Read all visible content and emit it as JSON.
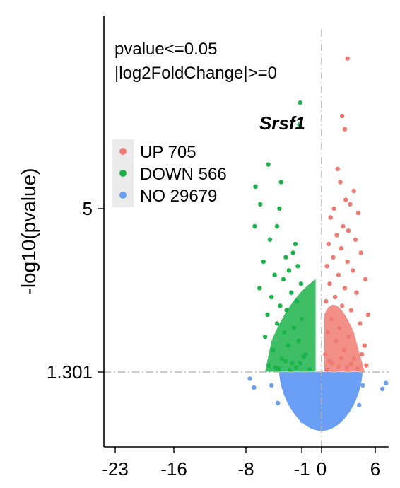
{
  "chart_data": {
    "type": "scatter",
    "title": "",
    "xlabel": "",
    "ylabel": "-log10(pvalue)",
    "x_ticks": [
      {
        "value": -23,
        "label": "-23"
      },
      {
        "value": -16,
        "label": "-16"
      },
      {
        "value": -8,
        "label": "-8"
      },
      {
        "value": -1,
        "label": "-1"
      },
      {
        "value": 0,
        "label": "0"
      },
      {
        "value": 6,
        "label": "6"
      }
    ],
    "y_ticks": [
      {
        "value": 1.301,
        "label": "1.301"
      },
      {
        "value": 5,
        "label": "5"
      }
    ],
    "xlim": [
      -26.5,
      7.5
    ],
    "ylim": [
      -0.3,
      9.0
    ],
    "annotations": [
      "pvalue<=0.05",
      "|log2FoldChange|>=0"
    ],
    "threshold_line_y": 1.301,
    "threshold_line_x": 0,
    "highlight_label": {
      "text": "Srsf1",
      "x": -1.2,
      "y": 6.9
    },
    "legend": {
      "placement": "top-left",
      "entries": [
        {
          "label": "UP 705",
          "color": "#F07B72"
        },
        {
          "label": "DOWN 566",
          "color": "#1CB34A"
        },
        {
          "label": "NO 29679",
          "color": "#6A9EF5"
        }
      ]
    },
    "series": [
      {
        "name": "UP 705",
        "color": "#F07B72",
        "points": [
          [
            2.9,
            8.4
          ],
          [
            2.6,
            6.8
          ],
          [
            2.3,
            7.1
          ],
          [
            1.8,
            5.9
          ],
          [
            2.1,
            5.6
          ],
          [
            3.6,
            5.4
          ],
          [
            3.2,
            5.1
          ],
          [
            2.7,
            5.2
          ],
          [
            1.4,
            5.0
          ],
          [
            4.1,
            4.9
          ],
          [
            1.0,
            4.8
          ],
          [
            2.4,
            4.6
          ],
          [
            3.0,
            4.5
          ],
          [
            1.7,
            4.4
          ],
          [
            3.8,
            4.3
          ],
          [
            0.8,
            4.2
          ],
          [
            2.2,
            4.1
          ],
          [
            4.4,
            4.0
          ],
          [
            1.3,
            3.9
          ],
          [
            2.9,
            3.8
          ],
          [
            0.6,
            3.7
          ],
          [
            3.5,
            3.6
          ],
          [
            1.9,
            3.5
          ],
          [
            4.9,
            3.4
          ],
          [
            0.9,
            3.3
          ],
          [
            2.6,
            3.2
          ],
          [
            3.9,
            3.1
          ],
          [
            1.5,
            3.0
          ],
          [
            0.5,
            2.9
          ],
          [
            2.3,
            2.8
          ],
          [
            3.3,
            2.7
          ],
          [
            5.2,
            2.6
          ],
          [
            1.1,
            2.5
          ],
          [
            4.3,
            2.4
          ],
          [
            2.0,
            2.3
          ],
          [
            0.7,
            2.2
          ],
          [
            3.0,
            2.1
          ],
          [
            1.6,
            2.0
          ],
          [
            4.8,
            1.9
          ],
          [
            2.5,
            1.8
          ],
          [
            0.4,
            1.7
          ],
          [
            3.6,
            1.6
          ],
          [
            1.2,
            1.5
          ],
          [
            5.0,
            1.45
          ],
          [
            2.8,
            1.4
          ],
          [
            0.6,
            1.35
          ],
          [
            4.0,
            1.38
          ],
          [
            1.9,
            1.42
          ],
          [
            3.3,
            1.48
          ],
          [
            0.9,
            1.55
          ],
          [
            2.2,
            1.62
          ],
          [
            4.5,
            1.7
          ]
        ]
      },
      {
        "name": "DOWN 566",
        "color": "#1CB34A",
        "points": [
          [
            -1.2,
            7.4
          ],
          [
            -1.3,
            6.9
          ],
          [
            -5.2,
            6.0
          ],
          [
            -3.6,
            5.6
          ],
          [
            -6.8,
            5.5
          ],
          [
            -6.2,
            5.1
          ],
          [
            -3.8,
            5.0
          ],
          [
            -6.9,
            4.6
          ],
          [
            -4.1,
            4.6
          ],
          [
            -5.0,
            4.3
          ],
          [
            -1.8,
            4.2
          ],
          [
            -2.1,
            4.0
          ],
          [
            -3.0,
            3.9
          ],
          [
            -5.8,
            3.8
          ],
          [
            -1.5,
            3.7
          ],
          [
            -2.6,
            3.6
          ],
          [
            -4.4,
            3.5
          ],
          [
            -3.3,
            3.4
          ],
          [
            -1.1,
            3.3
          ],
          [
            -6.3,
            3.2
          ],
          [
            -2.3,
            3.1
          ],
          [
            -4.8,
            3.0
          ],
          [
            -1.6,
            2.9
          ],
          [
            -3.7,
            2.8
          ],
          [
            -2.9,
            2.7
          ],
          [
            -5.3,
            2.6
          ],
          [
            -1.0,
            2.5
          ],
          [
            -4.1,
            2.4
          ],
          [
            -2.0,
            2.3
          ],
          [
            -3.2,
            2.2
          ],
          [
            -5.6,
            2.1
          ],
          [
            -1.4,
            2.0
          ],
          [
            -2.7,
            1.9
          ],
          [
            -4.6,
            1.8
          ],
          [
            -0.8,
            1.7
          ],
          [
            -3.5,
            1.6
          ],
          [
            -2.2,
            1.5
          ],
          [
            -5.1,
            1.45
          ],
          [
            -1.7,
            1.4
          ],
          [
            -3.9,
            1.38
          ],
          [
            -0.6,
            1.36
          ],
          [
            -2.5,
            1.34
          ],
          [
            -4.3,
            1.4
          ],
          [
            -1.2,
            1.5
          ],
          [
            -3.0,
            1.55
          ],
          [
            -0.9,
            1.65
          ]
        ]
      },
      {
        "name": "NO 29679",
        "color": "#6A9EF5",
        "points": [
          [
            -7.5,
            1.15
          ],
          [
            -7.0,
            0.95
          ],
          [
            7.2,
            1.05
          ],
          [
            6.8,
            0.92
          ],
          [
            -4.0,
            0.6
          ],
          [
            4.2,
            0.55
          ],
          [
            -3.0,
            1.2
          ],
          [
            3.0,
            1.2
          ],
          [
            -2.0,
            0.5
          ],
          [
            2.0,
            0.5
          ],
          [
            -1.0,
            0.2
          ],
          [
            1.0,
            0.2
          ],
          [
            -4.8,
            1.0
          ],
          [
            4.6,
            1.0
          ],
          [
            0.0,
            0.05
          ]
        ]
      }
    ]
  }
}
